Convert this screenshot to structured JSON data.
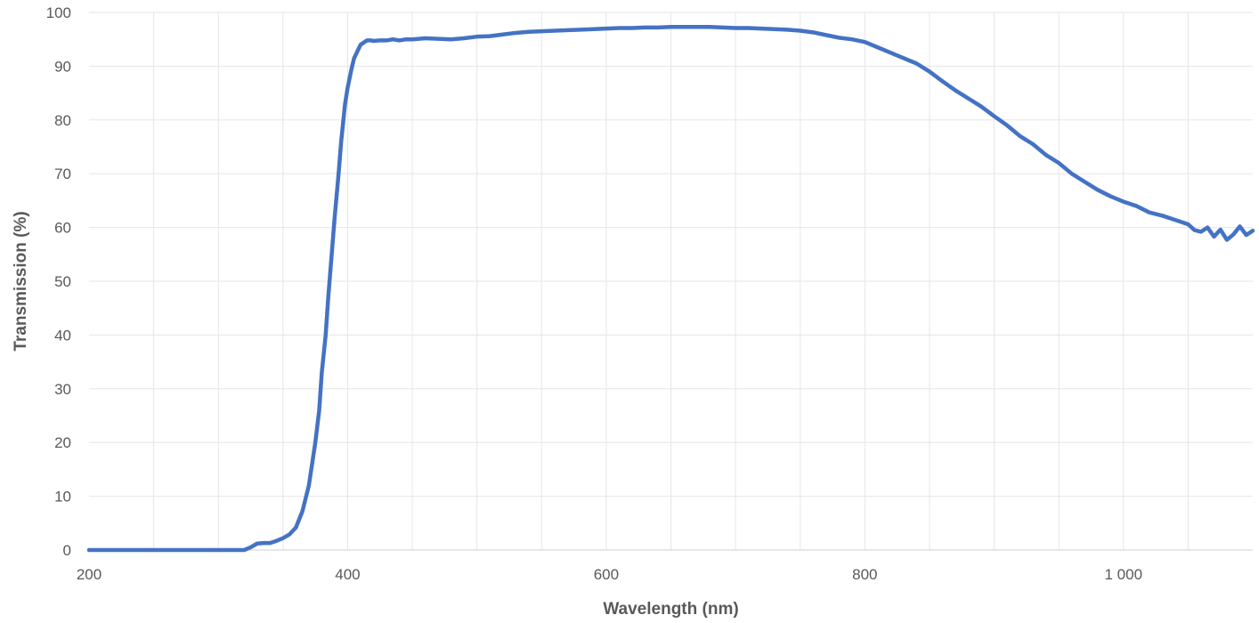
{
  "chart_data": {
    "type": "line",
    "title": "",
    "xlabel": "Wavelength (nm)",
    "ylabel": "Transmission (%)",
    "xlim": [
      200,
      1100
    ],
    "ylim": [
      0,
      100
    ],
    "grid": true,
    "legend": "none",
    "x_ticks": [
      200,
      400,
      600,
      800,
      1000
    ],
    "x_tick_labels": [
      "200",
      "400",
      "600",
      "800",
      "1 000"
    ],
    "y_ticks": [
      0,
      10,
      20,
      30,
      40,
      50,
      60,
      70,
      80,
      90,
      100
    ],
    "y_tick_labels": [
      "0",
      "10",
      "20",
      "30",
      "40",
      "50",
      "60",
      "70",
      "80",
      "90",
      "100"
    ],
    "series": [
      {
        "color": "#4472c4",
        "x": [
          200,
          250,
          300,
          320,
          325,
          330,
          335,
          340,
          345,
          350,
          355,
          360,
          365,
          370,
          375,
          378,
          380,
          383,
          385,
          388,
          390,
          393,
          395,
          398,
          400,
          403,
          405,
          408,
          410,
          413,
          415,
          418,
          420,
          425,
          430,
          435,
          440,
          445,
          450,
          455,
          460,
          470,
          480,
          490,
          500,
          510,
          520,
          530,
          540,
          550,
          560,
          570,
          580,
          590,
          600,
          610,
          620,
          630,
          640,
          650,
          660,
          670,
          680,
          690,
          700,
          710,
          720,
          730,
          740,
          750,
          760,
          770,
          780,
          790,
          800,
          810,
          820,
          830,
          840,
          850,
          860,
          870,
          880,
          890,
          900,
          910,
          920,
          930,
          940,
          950,
          960,
          970,
          980,
          990,
          1000,
          1010,
          1020,
          1030,
          1040,
          1050,
          1055,
          1060,
          1065,
          1070,
          1075,
          1080,
          1085,
          1090,
          1095,
          1100
        ],
        "values": [
          0,
          0,
          0,
          0,
          0.5,
          1.2,
          1.3,
          1.3,
          1.7,
          2.2,
          2.9,
          4.2,
          7.2,
          12,
          20,
          26,
          33,
          40,
          47,
          56,
          62,
          70,
          76,
          83,
          86,
          89.5,
          91.5,
          93,
          94,
          94.5,
          94.8,
          94.8,
          94.7,
          94.8,
          94.8,
          95,
          94.8,
          95,
          95,
          95.1,
          95.2,
          95.1,
          95,
          95.2,
          95.5,
          95.6,
          95.9,
          96.2,
          96.4,
          96.5,
          96.6,
          96.7,
          96.8,
          96.9,
          97,
          97.1,
          97.1,
          97.2,
          97.2,
          97.3,
          97.3,
          97.3,
          97.3,
          97.2,
          97.1,
          97.1,
          97,
          96.9,
          96.8,
          96.6,
          96.3,
          95.8,
          95.3,
          95,
          94.5,
          93.5,
          92.5,
          91.5,
          90.5,
          89,
          87.2,
          85.5,
          84,
          82.5,
          80.7,
          79,
          77,
          75.5,
          73.5,
          72,
          70,
          68.5,
          67,
          65.8,
          64.8,
          64,
          62.8,
          62.2,
          61.4,
          60.6,
          59.5,
          59.2,
          60,
          58.3,
          59.6,
          57.7,
          58.7,
          60.2,
          58.6,
          59.4
        ]
      }
    ]
  }
}
